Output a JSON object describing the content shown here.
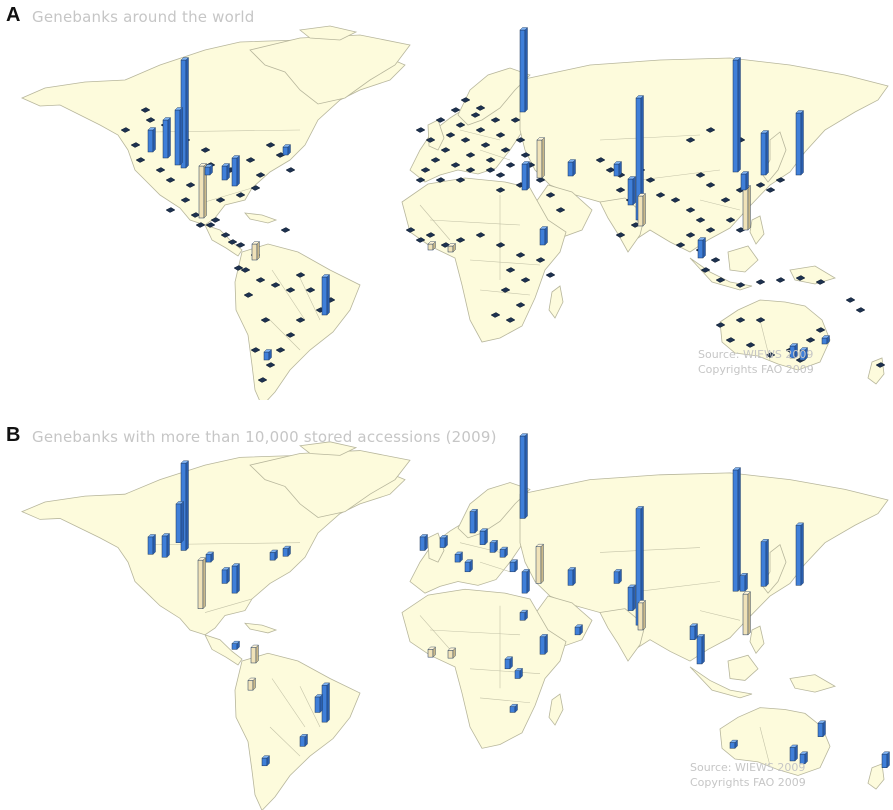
{
  "panels": {
    "a": {
      "letter": "A",
      "title": "Genebanks around the world",
      "source": "Source: WIEWS 2009",
      "copyright": "Copyrights FAO 2009"
    },
    "b": {
      "letter": "B",
      "title": "Genebanks with more than 10,000 stored accessions (2009)",
      "source": "Source: WIEWS 2009",
      "copyright": "Copyrights FAO 2009"
    }
  },
  "colors": {
    "ocean": "#ffffff",
    "land": "#fdfbdc",
    "coastline": "#b7b69c",
    "bar_national": "#3f7fd9",
    "bar_international": "#f0e2b8",
    "small_marker": "#1e3250",
    "caption_text": "#c6c6c6"
  },
  "legend_semantics": {
    "bar_national": "blue bars",
    "bar_international": "beige bars"
  }
}
